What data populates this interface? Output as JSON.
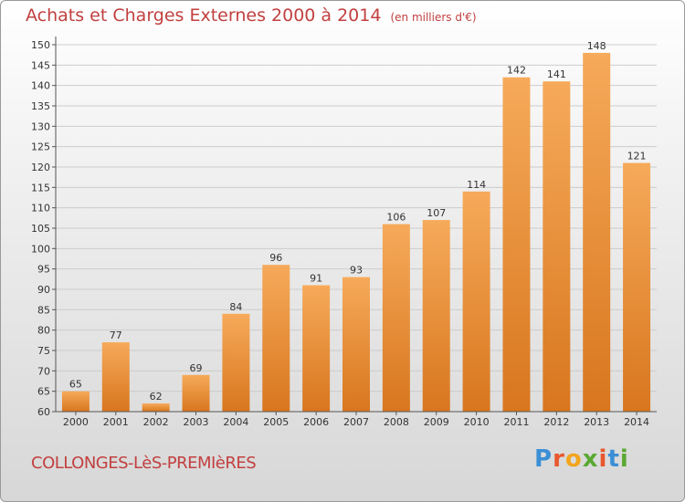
{
  "title": "Achats et Charges Externes 2000 à 2014",
  "unit_note": "(en milliers d'€)",
  "commune": "COLLONGES-LèS-PREMIèRES",
  "logo": {
    "letters": [
      "P",
      "r",
      "o",
      "x",
      "i",
      "t",
      "i"
    ],
    "colors": [
      "#3b8fd6",
      "#e8572e",
      "#f3a51d",
      "#5aa832",
      "#e8572e",
      "#3b8fd6",
      "#5aa832"
    ]
  },
  "colors": {
    "bar_top": "#f6aa5a",
    "bar_bottom": "#d8761e",
    "title": "#c24040",
    "grid": "#cccccc"
  },
  "chart_data": {
    "type": "bar",
    "title": "Achats et Charges Externes 2000 à 2014",
    "categories": [
      "2000",
      "2001",
      "2002",
      "2003",
      "2004",
      "2005",
      "2006",
      "2007",
      "2008",
      "2009",
      "2010",
      "2011",
      "2012",
      "2013",
      "2014"
    ],
    "values": [
      65,
      77,
      62,
      69,
      84,
      96,
      91,
      93,
      106,
      107,
      114,
      142,
      141,
      148,
      121
    ],
    "ylim": [
      60,
      150
    ],
    "yticks": [
      60,
      65,
      70,
      75,
      80,
      85,
      90,
      95,
      100,
      105,
      110,
      115,
      120,
      125,
      130,
      135,
      140,
      145,
      150
    ],
    "grid": true,
    "data_labels": true
  }
}
